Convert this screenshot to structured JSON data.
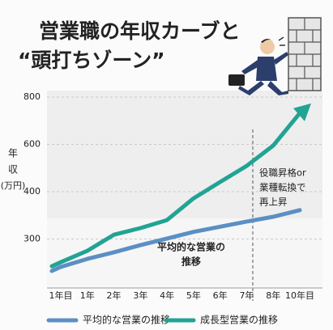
{
  "chart_data": {
    "type": "line",
    "title_lines": [
      "営業職の年収カーブと",
      "“頭打ちゾーン”"
    ],
    "ylabel_lines": [
      "年",
      "収",
      "(万円)"
    ],
    "categories": [
      "1年目",
      "1年",
      "2年",
      "3年",
      "4年",
      "5年",
      "6年",
      "7年",
      "8年",
      "10年目"
    ],
    "series": [
      {
        "name": "平均的な営業の推移",
        "color": "#5b8fc4",
        "values": [
          241,
          258,
          272,
          287,
          301,
          315,
          326,
          337,
          347,
          361
        ]
      },
      {
        "name": "成長型営業の推移",
        "color": "#22a394",
        "values": [
          251,
          275,
          309,
          323,
          340,
          386,
          441,
          509,
          595,
          732
        ]
      }
    ],
    "ylim": [
      200,
      800
    ],
    "yticks": [
      300,
      400,
      600,
      800
    ],
    "grid": true,
    "annotations": [
      {
        "lines": [
          "役職昇格or",
          "業種転換で",
          "再上昇"
        ]
      },
      {
        "lines": [
          "平均的な営業の",
          "推移"
        ]
      }
    ]
  }
}
